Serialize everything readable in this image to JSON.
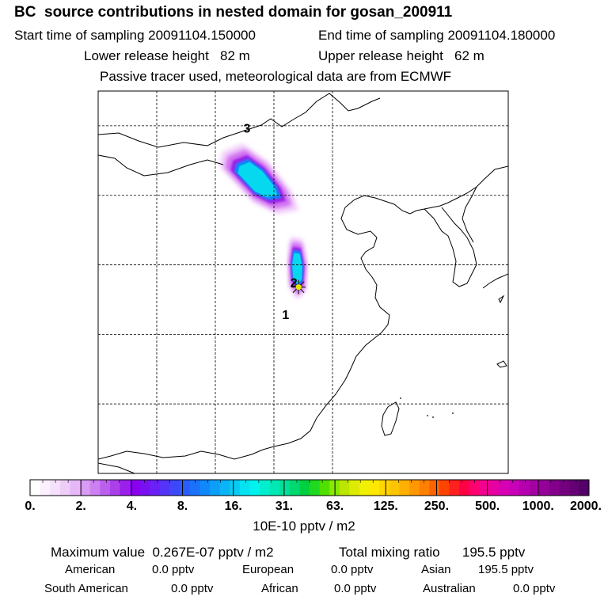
{
  "header": {
    "title": "BC  source contributions in nested domain for gosan_200911",
    "start_label": "Start time of sampling 20091104.150000",
    "end_label": "End time of sampling 20091104.180000",
    "lower_label": "Lower release height   82 m",
    "upper_label": "Upper release height   62 m",
    "note": "Passive tracer used, meteorological data are from ECMWF"
  },
  "map": {
    "markers": [
      {
        "label": "3",
        "lon": 122.7,
        "lat": 44.5
      },
      {
        "label": "2",
        "lon": 126.7,
        "lat": 33.4
      },
      {
        "label": "1",
        "lon": 126.0,
        "lat": 31.1
      }
    ],
    "site_marker": {
      "lon": 127.1,
      "lat": 33.4
    }
  },
  "chart_data": {
    "type": "heatmap",
    "title": "BC  source contributions in nested domain for gosan_200911",
    "units": "10E-10 pptv / m2",
    "xlim": [
      110,
      145
    ],
    "ylim": [
      20,
      47.5
    ],
    "grid_lon": [
      115,
      120,
      125,
      130
    ],
    "grid_lat": [
      25,
      30,
      35,
      40,
      45
    ],
    "grid_style": "dashed",
    "colorbar": {
      "tick_labels": [
        "0.",
        "2.",
        "4.",
        "8.",
        "16.",
        "31.",
        "63.",
        "125.",
        "250.",
        "500.",
        "1000.",
        "2000."
      ],
      "colors": [
        "#ffffff",
        "#fbf0fd",
        "#f5e1fb",
        "#eecdf9",
        "#e6b8f8",
        "#d99cf4",
        "#cc80f2",
        "#bb60ee",
        "#aa40ea",
        "#9a20ea",
        "#8a00ee",
        "#7a10f2",
        "#6a20f6",
        "#5533f8",
        "#3f47fa",
        "#2a5cfc",
        "#1a72fb",
        "#1088fa",
        "#0c9ef8",
        "#0ab4f6",
        "#08cbf4",
        "#06e2f2",
        "#00f2ee",
        "#00eed0",
        "#00e8b4",
        "#00e098",
        "#00d870",
        "#00d040",
        "#20d820",
        "#50e000",
        "#88e800",
        "#bce600",
        "#dcec00",
        "#f0f000",
        "#ffe800",
        "#ffd600",
        "#ffc400",
        "#ffb000",
        "#ff9800",
        "#ff8000",
        "#ff6200",
        "#ff4400",
        "#ff2020",
        "#ff0044",
        "#ff0070",
        "#f20090",
        "#e600a4",
        "#d800b4",
        "#c800b8",
        "#b600b0",
        "#a400a4",
        "#940098",
        "#84008c",
        "#740080",
        "#640074",
        "#540068"
      ]
    },
    "plumes": [
      {
        "name": "north-china-plume",
        "polygon": [
          [
            121.5,
            42.5
          ],
          [
            122.7,
            42.9
          ],
          [
            124.2,
            42.0
          ],
          [
            125.6,
            40.5
          ],
          [
            126.0,
            39.6
          ],
          [
            124.7,
            39.4
          ],
          [
            123.3,
            40.0
          ],
          [
            122.2,
            41.0
          ],
          [
            121.3,
            41.8
          ]
        ],
        "peak_range": "16.-31."
      },
      {
        "name": "korea-plume",
        "polygon": [
          [
            126.6,
            36.3
          ],
          [
            127.3,
            36.2
          ],
          [
            127.6,
            34.9
          ],
          [
            127.5,
            33.6
          ],
          [
            127.0,
            33.2
          ],
          [
            126.5,
            33.8
          ],
          [
            126.4,
            35.1
          ]
        ],
        "peak_range": "16.-31."
      }
    ]
  },
  "stats": {
    "maximum": "Maximum value  0.267E-07 pptv / m2",
    "total": "Total mixing ratio      195.5 pptv",
    "rows": [
      [
        {
          "label": "American",
          "value": "0.0 pptv"
        },
        {
          "label": "European",
          "value": "0.0 pptv"
        },
        {
          "label": "Asian",
          "value": "195.5 pptv"
        }
      ],
      [
        {
          "label": "South American",
          "value": "0.0 pptv"
        },
        {
          "label": "African",
          "value": "0.0 pptv"
        },
        {
          "label": "Australian",
          "value": "0.0 pptv"
        }
      ]
    ]
  }
}
